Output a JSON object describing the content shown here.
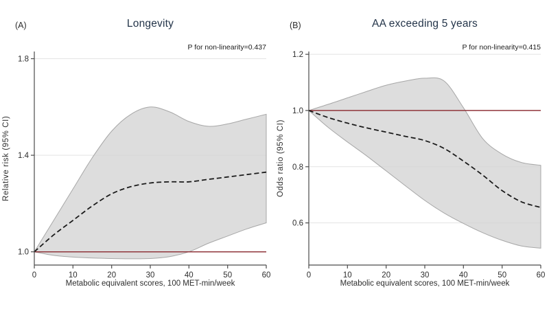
{
  "figure": {
    "background": "#ffffff"
  },
  "colors": {
    "title": "#233449",
    "refline_red": "#90353b",
    "band_fill": "#d4d4d4",
    "band_edge": "#9e9e9e",
    "estimate_line": "#1a1a1a",
    "axis": "#4a4a4a",
    "gridline": "#e3e3e3",
    "tick_text": "#2e2e2e"
  },
  "chart_data": [
    {
      "type": "line",
      "panel_label": "(A)",
      "title": "Longevity",
      "annotation": "P for non-linearity=0.437",
      "xlabel": "Metabolic equivalent scores, 100 MET-min/week",
      "ylabel": "Relative risk (95% CI)",
      "xlim": [
        0,
        60
      ],
      "ylim": [
        0.945,
        1.83
      ],
      "xticks": [
        0,
        10,
        20,
        30,
        40,
        50,
        60
      ],
      "xtick_labels": [
        "0",
        "10",
        "20",
        "30",
        "40",
        "50",
        "60"
      ],
      "yticks": [
        1.0,
        1.4,
        1.8
      ],
      "ytick_labels": [
        "1.0",
        "1.4",
        "1.8"
      ],
      "grid": true,
      "legend": "none",
      "refline": 1.0,
      "x": [
        0,
        5,
        10,
        15,
        20,
        25,
        30,
        35,
        40,
        45,
        50,
        55,
        60
      ],
      "series": [
        {
          "name": "estimate",
          "style": "dashed",
          "values": [
            1.0,
            1.07,
            1.13,
            1.19,
            1.24,
            1.27,
            1.285,
            1.29,
            1.29,
            1.3,
            1.31,
            1.32,
            1.33
          ]
        },
        {
          "name": "upper-95ci",
          "style": "band-upper",
          "values": [
            1.0,
            1.13,
            1.26,
            1.39,
            1.5,
            1.57,
            1.6,
            1.58,
            1.54,
            1.52,
            1.53,
            1.55,
            1.57
          ]
        },
        {
          "name": "lower-95ci",
          "style": "band-lower",
          "values": [
            1.0,
            0.985,
            0.978,
            0.974,
            0.972,
            0.971,
            0.972,
            0.98,
            1.0,
            1.035,
            1.065,
            1.095,
            1.12
          ]
        }
      ]
    },
    {
      "type": "line",
      "panel_label": "(B)",
      "title": "AA exceeding 5 years",
      "annotation": "P for non-linearity=0.415",
      "xlabel": "Metabolic equivalent scores, 100 MET-min/week",
      "ylabel": "Odds ratio (95% CI)",
      "xlim": [
        0,
        60
      ],
      "ylim": [
        0.45,
        1.21
      ],
      "xticks": [
        0,
        10,
        20,
        30,
        40,
        50,
        60
      ],
      "xtick_labels": [
        "0",
        "10",
        "20",
        "30",
        "40",
        "50",
        "60"
      ],
      "yticks": [
        0.6,
        0.8,
        1.0,
        1.2
      ],
      "ytick_labels": [
        "0.6",
        "0.8",
        "1.0",
        "1.2"
      ],
      "grid": true,
      "legend": "none",
      "refline": 1.0,
      "x": [
        0,
        5,
        10,
        15,
        20,
        25,
        30,
        35,
        40,
        45,
        50,
        55,
        60
      ],
      "series": [
        {
          "name": "estimate",
          "style": "dashed",
          "values": [
            1.0,
            0.975,
            0.955,
            0.938,
            0.923,
            0.908,
            0.893,
            0.865,
            0.82,
            0.77,
            0.715,
            0.675,
            0.655
          ]
        },
        {
          "name": "upper-95ci",
          "style": "band-upper",
          "values": [
            1.0,
            1.022,
            1.045,
            1.068,
            1.09,
            1.105,
            1.115,
            1.105,
            1.01,
            0.9,
            0.845,
            0.815,
            0.805
          ]
        },
        {
          "name": "lower-95ci",
          "style": "band-lower",
          "values": [
            1.0,
            0.94,
            0.888,
            0.838,
            0.785,
            0.732,
            0.68,
            0.635,
            0.598,
            0.565,
            0.538,
            0.518,
            0.51
          ]
        }
      ]
    }
  ]
}
